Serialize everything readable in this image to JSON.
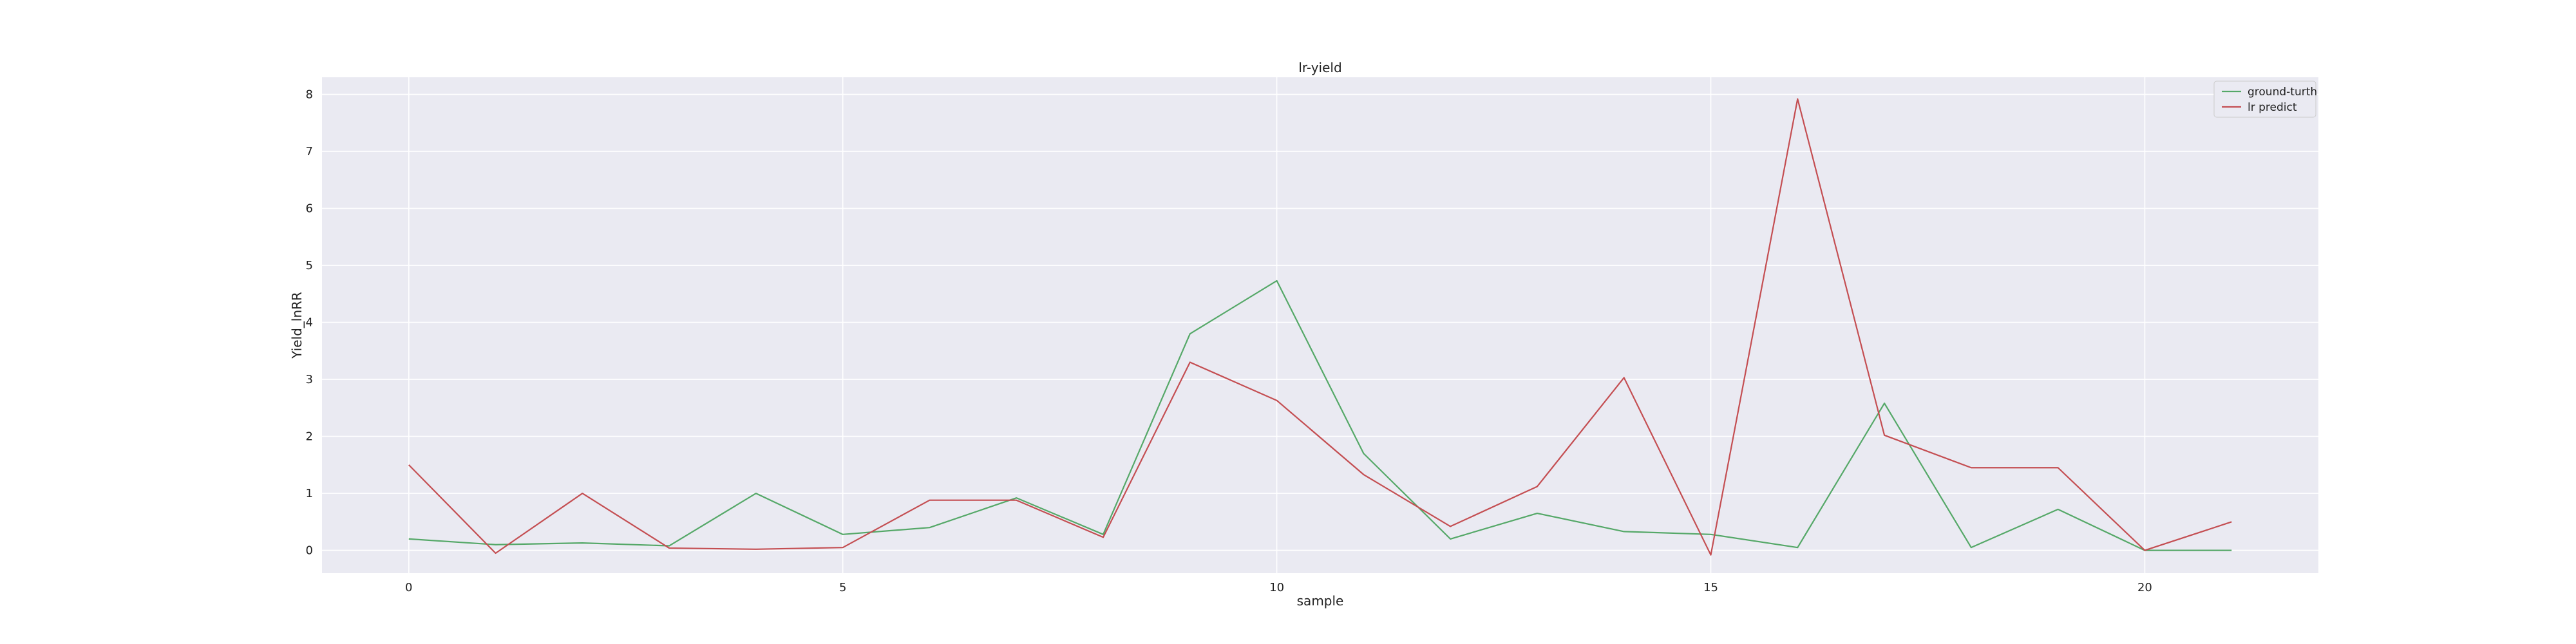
{
  "chart_data": {
    "type": "line",
    "title": "lr-yield",
    "xlabel": "sample",
    "ylabel": "Yield_lnRR",
    "xlim": [
      -1,
      22
    ],
    "ylim": [
      -0.4,
      8.3
    ],
    "x_ticks": [
      0,
      5,
      10,
      15,
      20
    ],
    "y_ticks": [
      0,
      1,
      2,
      3,
      4,
      5,
      6,
      7,
      8
    ],
    "grid": true,
    "legend_position": "top-right",
    "x": [
      0,
      1,
      2,
      3,
      4,
      5,
      6,
      7,
      8,
      9,
      10,
      11,
      12,
      13,
      14,
      15,
      16,
      17,
      18,
      19,
      20,
      21
    ],
    "series": [
      {
        "name": "ground-turth",
        "color": "#55a868",
        "values": [
          0.2,
          0.1,
          0.13,
          0.08,
          1.0,
          0.28,
          0.4,
          0.92,
          0.28,
          3.8,
          4.73,
          1.7,
          0.2,
          0.65,
          0.33,
          0.28,
          0.05,
          2.58,
          0.05,
          0.72,
          0.0,
          0.0
        ]
      },
      {
        "name": "lr predict",
        "color": "#c44e52",
        "values": [
          1.5,
          -0.05,
          1.0,
          0.04,
          0.02,
          0.05,
          0.88,
          0.88,
          0.23,
          3.3,
          2.63,
          1.33,
          0.42,
          1.12,
          3.03,
          -0.08,
          7.92,
          2.02,
          1.45,
          1.45,
          0.0,
          0.5
        ]
      }
    ]
  }
}
